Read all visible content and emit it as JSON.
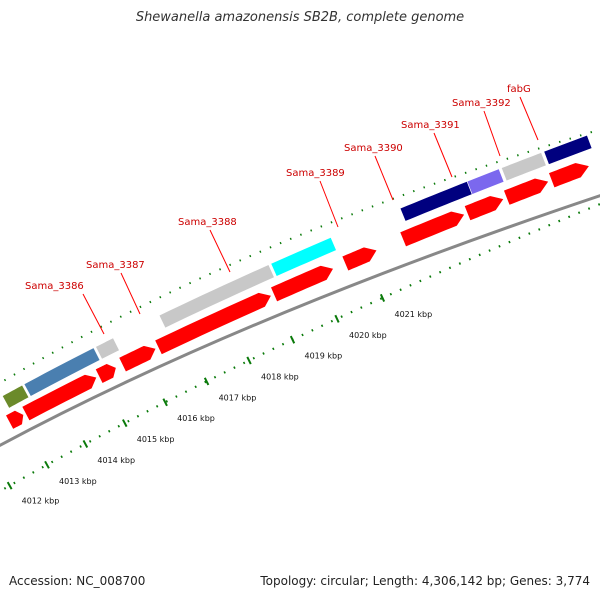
{
  "title": "Shewanella amazonensis SB2B, complete genome",
  "footer": {
    "accession": "Accession: NC_008700",
    "summary": "Topology: circular; Length: 4,306,142 bp; Genes: 3,774"
  },
  "colors": {
    "cds": "#ff0000",
    "label": "#cc0000",
    "label_line": "#ff0000",
    "tick": "#0a7a0a",
    "backbone": "#888888",
    "feature_gray": "#c8c8c8",
    "feature_steelblue": "#4a7fb0",
    "feature_olive": "#6b8a2a",
    "feature_cyan": "#00ffff",
    "feature_navy": "#00007f",
    "feature_slateblue": "#7b68ee"
  },
  "scale_labels": [
    {
      "text": "4012 kbp",
      "kbp": 4012
    },
    {
      "text": "4013 kbp",
      "kbp": 4013
    },
    {
      "text": "4014 kbp",
      "kbp": 4014
    },
    {
      "text": "4015 kbp",
      "kbp": 4015
    },
    {
      "text": "4016 kbp",
      "kbp": 4016
    },
    {
      "text": "4017 kbp",
      "kbp": 4017
    },
    {
      "text": "4018 kbp",
      "kbp": 4018
    },
    {
      "text": "4019 kbp",
      "kbp": 4019
    },
    {
      "text": "4020 kbp",
      "kbp": 4020
    },
    {
      "text": "4021 kbp",
      "kbp": 4021
    }
  ],
  "gene_labels": [
    {
      "text": "Sama_3386"
    },
    {
      "text": "Sama_3387"
    },
    {
      "text": "Sama_3388"
    },
    {
      "text": "Sama_3389"
    },
    {
      "text": "Sama_3390"
    },
    {
      "text": "Sama_3391"
    },
    {
      "text": "Sama_3392"
    },
    {
      "text": "fabG"
    }
  ],
  "cds_track": [
    {
      "name": "cds-1",
      "start": 4012.0,
      "end": 4012.4
    },
    {
      "name": "cds-2",
      "start": 4012.45,
      "end": 4014.35
    },
    {
      "name": "cds-3",
      "start": 4014.4,
      "end": 4014.85
    },
    {
      "name": "cds-4",
      "start": 4015.0,
      "end": 4015.85
    },
    {
      "name": "cds-5",
      "start": 4015.9,
      "end": 4018.6
    },
    {
      "name": "cds-6",
      "start": 4018.65,
      "end": 4020.0
    },
    {
      "name": "cds-7",
      "start": 4020.25,
      "end": 4020.95
    },
    {
      "name": "cds-8",
      "start": 4021.5,
      "end": 4022.8
    },
    {
      "name": "cds-9",
      "start": 4022.85,
      "end": 4023.6
    },
    {
      "name": "cds-10",
      "start": 4023.65,
      "end": 4024.5
    },
    {
      "name": "cds-11",
      "start": 4024.55,
      "end": 4025.3
    }
  ],
  "feature_track": [
    {
      "name": "feature-olive",
      "start": 4011.9,
      "end": 4012.45,
      "color": "feature_olive"
    },
    {
      "name": "feature-steelblue",
      "start": 4012.5,
      "end": 4014.35,
      "color": "feature_steelblue"
    },
    {
      "name": "feature-gray-1",
      "start": 4014.4,
      "end": 4014.85,
      "color": "feature_gray"
    },
    {
      "name": "feature-gray-2",
      "start": 4016.0,
      "end": 4018.6,
      "color": "feature_gray"
    },
    {
      "name": "feature-cyan",
      "start": 4018.65,
      "end": 4020.0,
      "color": "feature_cyan"
    },
    {
      "name": "feature-navy-1",
      "start": 4021.5,
      "end": 4022.9,
      "color": "feature_navy"
    },
    {
      "name": "feature-slateblue",
      "start": 4022.9,
      "end": 4023.55,
      "color": "feature_slateblue"
    },
    {
      "name": "feature-gray-3",
      "start": 4023.6,
      "end": 4024.4,
      "color": "feature_gray"
    },
    {
      "name": "feature-navy-2",
      "start": 4024.45,
      "end": 4025.3,
      "color": "feature_navy"
    }
  ]
}
